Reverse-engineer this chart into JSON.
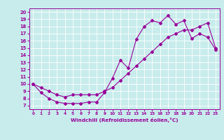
{
  "xlabel": "Windchill (Refroidissement éolien,°C)",
  "bg_color": "#c8ecec",
  "line_color": "#990099",
  "grid_color": "#ffffff",
  "spine_color": "#990099",
  "xlim": [
    -0.5,
    23.5
  ],
  "ylim": [
    6.5,
    20.5
  ],
  "xticks": [
    0,
    1,
    2,
    3,
    4,
    5,
    6,
    7,
    8,
    9,
    10,
    11,
    12,
    13,
    14,
    15,
    16,
    17,
    18,
    19,
    20,
    21,
    22,
    23
  ],
  "yticks": [
    7,
    8,
    9,
    10,
    11,
    12,
    13,
    14,
    15,
    16,
    17,
    18,
    19,
    20
  ],
  "line1_x": [
    0,
    1,
    2,
    3,
    4,
    5,
    6,
    7,
    8,
    9,
    10,
    11,
    12,
    13,
    14,
    15,
    16,
    17,
    18,
    19,
    20,
    21,
    22,
    23
  ],
  "line1_y": [
    10,
    8.8,
    8.0,
    7.5,
    7.3,
    7.3,
    7.3,
    7.5,
    7.5,
    8.8,
    10.8,
    13.3,
    12.2,
    16.2,
    18.0,
    18.8,
    18.5,
    19.5,
    18.3,
    18.8,
    16.3,
    17.0,
    16.5,
    14.8
  ],
  "line2_x": [
    0,
    1,
    2,
    3,
    4,
    5,
    6,
    7,
    8,
    9,
    10,
    11,
    12,
    13,
    14,
    15,
    16,
    17,
    18,
    19,
    20,
    21,
    22,
    23
  ],
  "line2_y": [
    10,
    9.5,
    9.0,
    8.5,
    8.2,
    8.5,
    8.5,
    8.5,
    8.5,
    9.0,
    9.5,
    10.5,
    11.5,
    12.5,
    13.5,
    14.5,
    15.5,
    16.5,
    17.0,
    17.5,
    17.5,
    18.0,
    18.5,
    15.0
  ]
}
